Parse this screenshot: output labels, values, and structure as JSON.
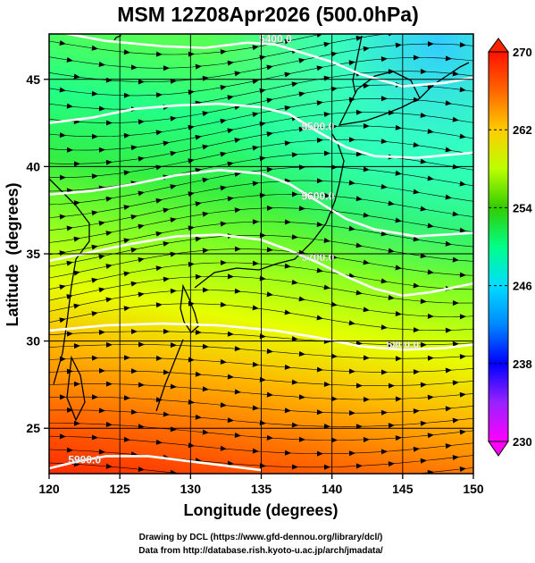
{
  "chart_data": {
    "type": "heatmap",
    "title": "MSM 12Z08Apr2026 (500.0hPa)",
    "xlabel": "Longitude (degrees)",
    "ylabel": "Latitude  (degrees)",
    "xlim": [
      120,
      150
    ],
    "ylim": [
      22.4,
      47.6
    ],
    "x_ticks": [
      120,
      125,
      130,
      135,
      140,
      145,
      150
    ],
    "y_ticks": [
      25,
      30,
      35,
      40,
      45
    ],
    "colorbar": {
      "min": 230,
      "max": 270,
      "ticks": [
        230,
        238,
        246,
        254,
        262,
        270
      ],
      "colors": [
        "#ff00ff",
        "#6633ff",
        "#0000ff",
        "#00ccff",
        "#00ff66",
        "#33cc00",
        "#ccff00",
        "#ffcc00",
        "#ff6600",
        "#ff0000"
      ]
    },
    "contours": [
      {
        "label": "5400.0",
        "points": [
          [
            120,
            47.8
          ],
          [
            124,
            47.2
          ],
          [
            128,
            46.9
          ],
          [
            131,
            46.8
          ],
          [
            134,
            47.1
          ],
          [
            136,
            47.0
          ],
          [
            138,
            46.5
          ],
          [
            140,
            46.0
          ],
          [
            142,
            45.3
          ],
          [
            145,
            44.6
          ],
          [
            148,
            44.8
          ],
          [
            150,
            45.1
          ]
        ]
      },
      {
        "label": "5500.0",
        "points": [
          [
            120,
            42.5
          ],
          [
            123,
            42.8
          ],
          [
            126,
            43.3
          ],
          [
            129,
            43.5
          ],
          [
            132,
            43.6
          ],
          [
            135,
            43.4
          ],
          [
            137,
            43.0
          ],
          [
            139,
            42.0
          ],
          [
            141,
            41.1
          ],
          [
            143,
            40.6
          ],
          [
            146,
            40.5
          ],
          [
            150,
            40.8
          ]
        ]
      },
      {
        "label": "5600.0",
        "points": [
          [
            120,
            38.4
          ],
          [
            123,
            38.6
          ],
          [
            126,
            39.0
          ],
          [
            129,
            39.5
          ],
          [
            132,
            39.8
          ],
          [
            135,
            39.6
          ],
          [
            137,
            39.0
          ],
          [
            139,
            38.0
          ],
          [
            141,
            37.0
          ],
          [
            143,
            36.4
          ],
          [
            146,
            36.0
          ],
          [
            150,
            36.2
          ]
        ]
      },
      {
        "label": "5700.0",
        "points": [
          [
            120,
            34.6
          ],
          [
            123,
            35.1
          ],
          [
            126,
            35.6
          ],
          [
            129,
            36.0
          ],
          [
            132,
            36.1
          ],
          [
            135,
            35.8
          ],
          [
            137,
            35.2
          ],
          [
            139,
            34.5
          ],
          [
            141,
            33.7
          ],
          [
            143,
            33.0
          ],
          [
            145,
            32.6
          ],
          [
            147,
            32.8
          ],
          [
            150,
            33.3
          ]
        ]
      },
      {
        "label": "5800.0",
        "points": [
          [
            120,
            30.6
          ],
          [
            124,
            30.9
          ],
          [
            128,
            31.0
          ],
          [
            132,
            30.9
          ],
          [
            136,
            30.6
          ],
          [
            139,
            30.2
          ],
          [
            142,
            29.7
          ],
          [
            145,
            29.5
          ],
          [
            148,
            29.6
          ],
          [
            150,
            29.8
          ]
        ]
      },
      {
        "label": "5900.0",
        "points": [
          [
            120,
            22.7
          ],
          [
            122,
            23.1
          ],
          [
            124,
            23.4
          ],
          [
            127,
            23.4
          ],
          [
            130,
            23.1
          ],
          [
            133,
            22.8
          ],
          [
            135,
            22.6
          ]
        ]
      }
    ],
    "credit_line1": "Drawing by DCL (https://www.gfd-dennou.org/library/dcl/)",
    "credit_line2": "Data from http://database.rish.kyoto-u.ac.jp/arch/jmadata/"
  }
}
